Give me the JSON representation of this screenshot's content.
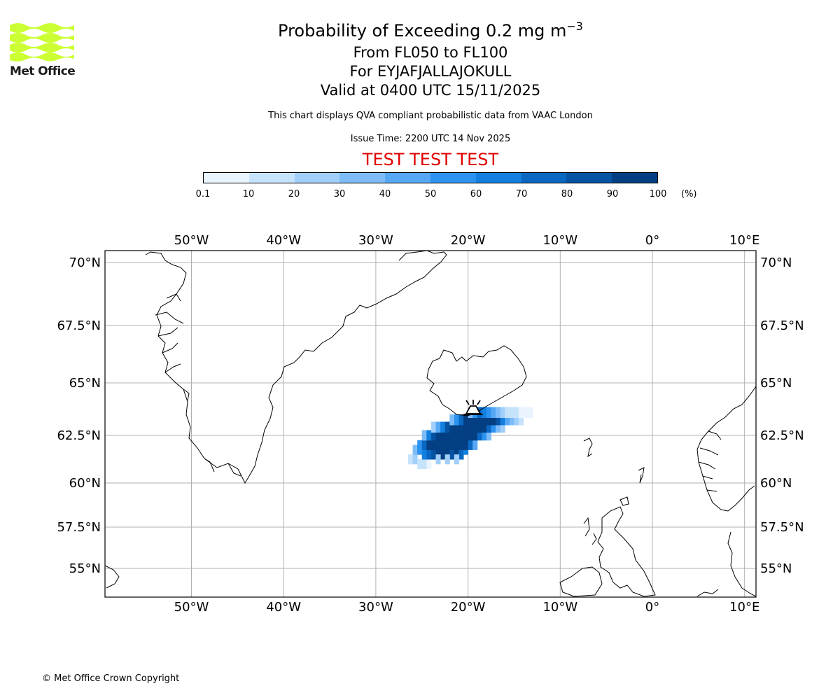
{
  "logo": {
    "text": "Met Office",
    "color": "#ccff33"
  },
  "header": {
    "title_main": "Probability of Exceeding 0.2 mg m",
    "title_sup": "−3",
    "line2": "From FL050 to FL100",
    "line3": "For EYJAFJALLAJOKULL",
    "line4": "Valid at 0400 UTC 15/11/2025",
    "description": "This chart displays QVA compliant probabilistic data from VAAC London",
    "issue_time": "Issue Time: 2200 UTC 14 Nov 2025",
    "test_banner": "TEST TEST TEST"
  },
  "colorbar": {
    "ticks": [
      "0.1",
      "10",
      "20",
      "30",
      "40",
      "50",
      "60",
      "70",
      "80",
      "90",
      "100"
    ],
    "unit": "(%)",
    "colors": [
      "#eaf4fe",
      "#c6e3fc",
      "#a2cffa",
      "#7dbcf8",
      "#56a8f5",
      "#2d93f0",
      "#137fdf",
      "#0a68c2",
      "#0653a3",
      "#033f82",
      "#022b5a"
    ]
  },
  "map": {
    "lon_ticks": [
      "50°W",
      "40°W",
      "30°W",
      "20°W",
      "10°W",
      "0°",
      "10°E"
    ],
    "lat_ticks": [
      "70°N",
      "67.5°N",
      "65°N",
      "62.5°N",
      "60°N",
      "57.5°N",
      "55°N"
    ],
    "volcano": "EYJAFJALLAJOKULL",
    "grid": true,
    "plume": {
      "cell_deg": 0.5,
      "cells": [
        [
          -26.5,
          61.25,
          10
        ],
        [
          -26.0,
          61.25,
          20
        ],
        [
          -25.5,
          61.0,
          10
        ],
        [
          -25.0,
          61.0,
          10
        ],
        [
          -24.5,
          61.0,
          5
        ],
        [
          -26.0,
          61.75,
          30
        ],
        [
          -25.5,
          61.75,
          50
        ],
        [
          -25.0,
          61.5,
          60
        ],
        [
          -24.5,
          61.5,
          70
        ],
        [
          -24.0,
          61.5,
          80
        ],
        [
          -23.5,
          61.5,
          90
        ],
        [
          -23.0,
          61.5,
          90
        ],
        [
          -22.5,
          61.5,
          90
        ],
        [
          -22.0,
          61.5,
          80
        ],
        [
          -21.5,
          61.5,
          90
        ],
        [
          -21.0,
          61.5,
          70
        ],
        [
          -20.5,
          61.75,
          60
        ],
        [
          -23.5,
          61.25,
          20
        ],
        [
          -22.5,
          61.25,
          20
        ],
        [
          -21.5,
          61.25,
          20
        ],
        [
          -25.5,
          62.0,
          50
        ],
        [
          -25.0,
          62.0,
          70
        ],
        [
          -24.5,
          62.0,
          90
        ],
        [
          -24.0,
          62.0,
          95
        ],
        [
          -23.5,
          62.0,
          95
        ],
        [
          -23.0,
          62.0,
          95
        ],
        [
          -22.5,
          62.0,
          95
        ],
        [
          -22.0,
          62.0,
          95
        ],
        [
          -21.5,
          62.0,
          95
        ],
        [
          -21.0,
          62.0,
          95
        ],
        [
          -20.5,
          62.0,
          90
        ],
        [
          -20.0,
          62.0,
          70
        ],
        [
          -19.5,
          62.0,
          40
        ],
        [
          -25.0,
          62.5,
          30
        ],
        [
          -24.5,
          62.5,
          60
        ],
        [
          -24.0,
          62.5,
          80
        ],
        [
          -23.5,
          62.5,
          95
        ],
        [
          -23.0,
          62.5,
          95
        ],
        [
          -22.5,
          62.5,
          95
        ],
        [
          -22.0,
          62.5,
          95
        ],
        [
          -21.5,
          62.5,
          95
        ],
        [
          -21.0,
          62.5,
          95
        ],
        [
          -20.5,
          62.5,
          95
        ],
        [
          -20.0,
          62.5,
          95
        ],
        [
          -19.5,
          62.5,
          90
        ],
        [
          -19.0,
          62.5,
          70
        ],
        [
          -18.5,
          62.5,
          50
        ],
        [
          -18.0,
          62.5,
          30
        ],
        [
          -24.0,
          62.9,
          20
        ],
        [
          -23.5,
          62.9,
          40
        ],
        [
          -23.0,
          62.9,
          60
        ],
        [
          -22.5,
          62.9,
          80
        ],
        [
          -22.0,
          62.9,
          90
        ],
        [
          -21.5,
          62.9,
          95
        ],
        [
          -21.0,
          62.9,
          95
        ],
        [
          -20.5,
          62.9,
          95
        ],
        [
          -20.0,
          62.9,
          95
        ],
        [
          -19.5,
          62.9,
          95
        ],
        [
          -19.0,
          62.9,
          95
        ],
        [
          -18.5,
          62.9,
          90
        ],
        [
          -18.0,
          62.9,
          70
        ],
        [
          -17.5,
          62.9,
          50
        ],
        [
          -17.0,
          62.9,
          30
        ],
        [
          -16.5,
          62.9,
          20
        ],
        [
          -22.0,
          63.25,
          30
        ],
        [
          -21.5,
          63.25,
          50
        ],
        [
          -21.0,
          63.25,
          70
        ],
        [
          -20.5,
          63.25,
          90
        ],
        [
          -20.0,
          63.25,
          95
        ],
        [
          -19.5,
          63.25,
          95
        ],
        [
          -19.0,
          63.25,
          95
        ],
        [
          -18.5,
          63.25,
          95
        ],
        [
          -18.0,
          63.25,
          95
        ],
        [
          -17.5,
          63.25,
          90
        ],
        [
          -17.0,
          63.25,
          80
        ],
        [
          -16.5,
          63.25,
          60
        ],
        [
          -16.0,
          63.25,
          40
        ],
        [
          -15.5,
          63.25,
          30
        ],
        [
          -15.0,
          63.25,
          20
        ],
        [
          -14.5,
          63.25,
          10
        ],
        [
          -20.0,
          63.6,
          30
        ],
        [
          -19.5,
          63.6,
          50
        ],
        [
          -19.0,
          63.6,
          70
        ],
        [
          -18.5,
          63.6,
          60
        ],
        [
          -18.0,
          63.6,
          50
        ],
        [
          -17.5,
          63.6,
          40
        ],
        [
          -17.0,
          63.6,
          30
        ],
        [
          -16.5,
          63.6,
          20
        ],
        [
          -16.0,
          63.6,
          15
        ],
        [
          -15.5,
          63.6,
          10
        ],
        [
          -15.0,
          63.6,
          10
        ],
        [
          -14.5,
          63.6,
          5
        ],
        [
          -14.0,
          63.6,
          5
        ],
        [
          -13.5,
          63.6,
          5
        ]
      ]
    }
  },
  "copyright": "© Met Office Crown Copyright"
}
